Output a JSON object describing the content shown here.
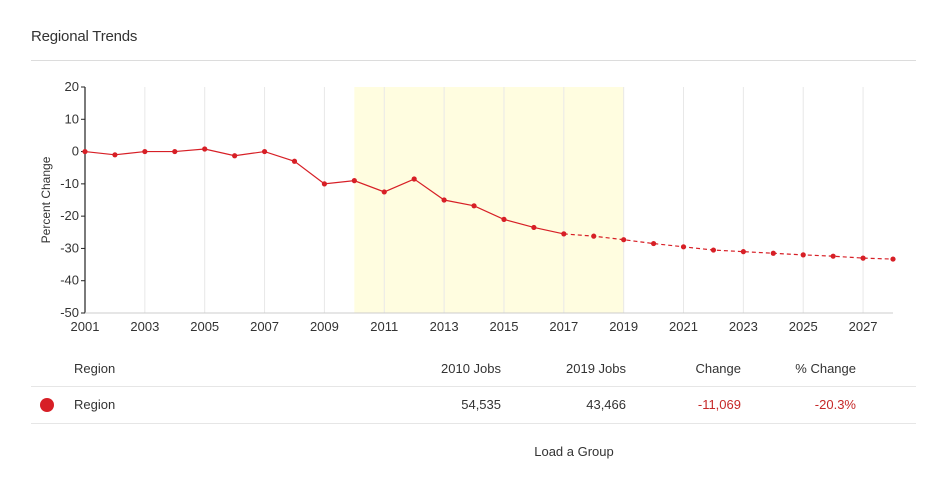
{
  "header": {
    "title": "Regional Trends"
  },
  "chart_data": {
    "type": "line",
    "title": "",
    "ylabel": "Percent Change",
    "xlabel": "",
    "xlim": [
      2001,
      2028
    ],
    "ylim": [
      -50,
      20
    ],
    "x_ticks": [
      2001,
      2003,
      2005,
      2007,
      2009,
      2011,
      2013,
      2015,
      2017,
      2019,
      2021,
      2023,
      2025,
      2027
    ],
    "y_ticks": [
      20,
      10,
      0,
      -10,
      -20,
      -30,
      -40,
      -50
    ],
    "highlight_range": [
      2010,
      2019
    ],
    "highlight_color": "#fffde0",
    "projection_start": 2017,
    "series": [
      {
        "color": "#d71f26",
        "x": [
          2001,
          2002,
          2003,
          2004,
          2005,
          2006,
          2007,
          2008,
          2009,
          2010,
          2011,
          2012,
          2013,
          2014,
          2015,
          2016,
          2017,
          2018,
          2019,
          2020,
          2021,
          2022,
          2023,
          2024,
          2025,
          2026,
          2027,
          2028
        ],
        "values": [
          0,
          -1,
          0,
          0,
          0.8,
          -1.3,
          0,
          -3,
          -10,
          -9,
          -12.5,
          -8.5,
          -15,
          -16.8,
          -21,
          -23.5,
          -25.5,
          -26.2,
          -27.3,
          -28.5,
          -29.5,
          -30.5,
          -31,
          -31.5,
          -32,
          -32.4,
          -33,
          -33.3
        ]
      }
    ]
  },
  "table": {
    "headers": {
      "region": "Region",
      "jobs_2010": "2010 Jobs",
      "jobs_2019": "2019 Jobs",
      "change": "Change",
      "pct_change": "% Change"
    },
    "rows": [
      {
        "color": "#d71f26",
        "region": "Region",
        "jobs_2010": "54,535",
        "jobs_2019": "43,466",
        "change": "-11,069",
        "pct_change": "-20.3%"
      }
    ]
  },
  "footer": {
    "load_group": "Load a Group"
  }
}
